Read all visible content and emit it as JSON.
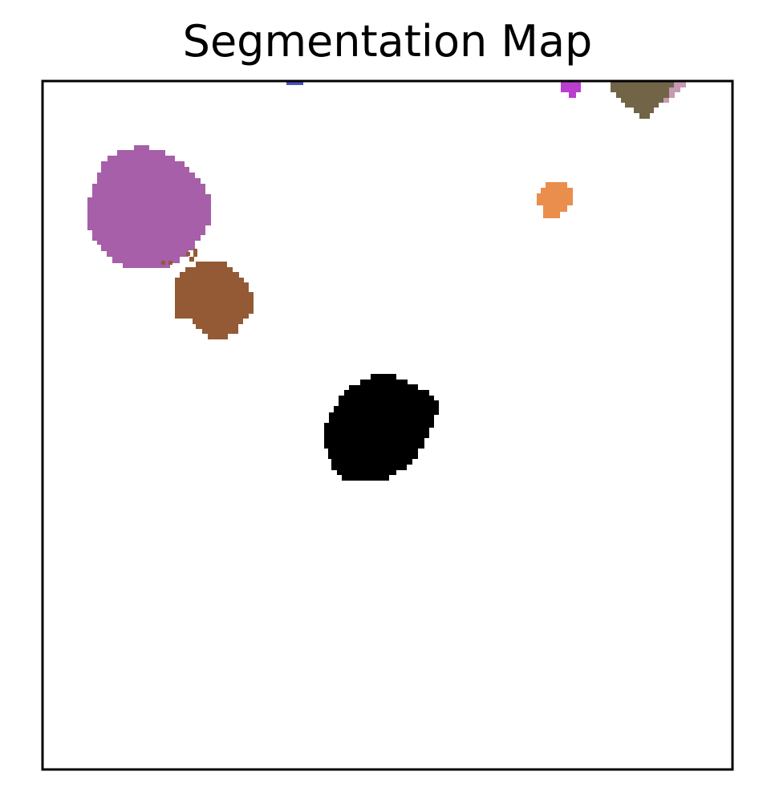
{
  "title": "Segmentation Map",
  "background_color": "#ffffff",
  "frame_color": "#000000",
  "segments": [
    {
      "name": "purple-region",
      "color": "#A65FA8"
    },
    {
      "name": "brown-region",
      "color": "#935A35"
    },
    {
      "name": "black-region",
      "color": "#000000"
    },
    {
      "name": "orange-region",
      "color": "#EA8E4D"
    },
    {
      "name": "olive-region",
      "color": "#716447"
    },
    {
      "name": "pink-region",
      "color": "#C79AB4"
    },
    {
      "name": "magenta-region",
      "color": "#B93ECF"
    },
    {
      "name": "blue-region",
      "color": "#4A4FC4"
    }
  ]
}
